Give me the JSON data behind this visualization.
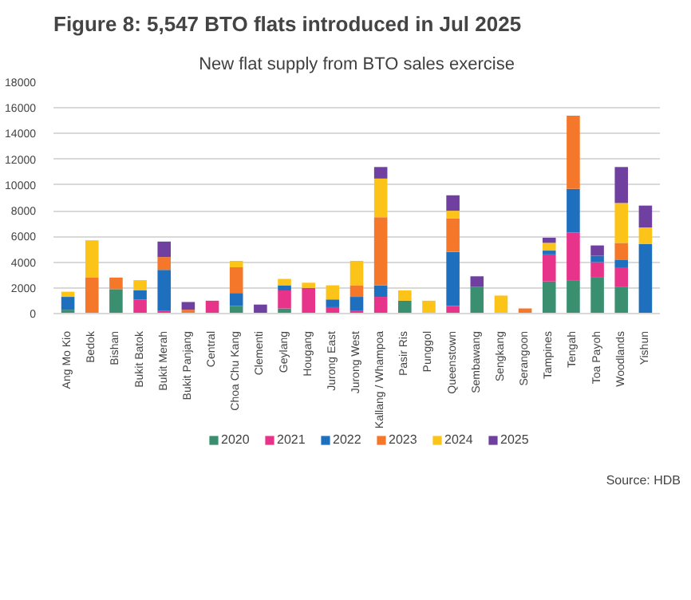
{
  "chart_data": {
    "type": "bar",
    "stacked": true,
    "title": "New flat supply from BTO sales exercise",
    "subtitle": "Figure 8: 5,547 BTO flats introduced in Jul 2025",
    "annotations": [
      "Source: HDB"
    ],
    "categories": [
      "Ang Mo Kio",
      "Bedok",
      "Bishan",
      "Bukit Batok",
      "Bukit Merah",
      "Bukit Panjang",
      "Central",
      "Choa Chu Kang",
      "Clementi",
      "Geylang",
      "Hougang",
      "Jurong East",
      "Jurong West",
      "Kallang / Whampoa",
      "Pasir Ris",
      "Punggol",
      "Queenstown",
      "Sembawang",
      "Sengkang",
      "Serangoon",
      "Tampines",
      "Tengah",
      "Toa Payoh",
      "Woodlands",
      "Yishun"
    ],
    "series": [
      {
        "name": "2020",
        "color": "#3a8f70",
        "values": [
          300,
          null,
          1900,
          null,
          null,
          null,
          null,
          600,
          null,
          400,
          null,
          null,
          null,
          null,
          1000,
          null,
          null,
          2100,
          null,
          null,
          2500,
          2600,
          2800,
          2100,
          null
        ]
      },
      {
        "name": "2021",
        "color": "#e8338a",
        "values": [
          null,
          null,
          null,
          1100,
          200,
          null,
          1000,
          null,
          null,
          1400,
          2000,
          500,
          200,
          1300,
          null,
          null,
          600,
          null,
          null,
          null,
          2100,
          3700,
          1200,
          1500,
          null
        ]
      },
      {
        "name": "2022",
        "color": "#1f6fbf",
        "values": [
          1000,
          null,
          null,
          700,
          3200,
          null,
          null,
          1000,
          null,
          400,
          null,
          600,
          1100,
          900,
          null,
          null,
          4200,
          null,
          null,
          null,
          300,
          3400,
          500,
          600,
          5400
        ]
      },
      {
        "name": "2023",
        "color": "#f5782a",
        "values": [
          null,
          2800,
          900,
          null,
          1000,
          300,
          null,
          2000,
          null,
          null,
          null,
          null,
          900,
          5300,
          null,
          null,
          2600,
          null,
          null,
          400,
          null,
          5700,
          null,
          1300,
          null
        ]
      },
      {
        "name": "2024",
        "color": "#fcc419",
        "values": [
          400,
          2900,
          null,
          800,
          null,
          null,
          null,
          500,
          null,
          500,
          400,
          1100,
          1900,
          3000,
          800,
          1000,
          600,
          null,
          1400,
          null,
          600,
          null,
          null,
          3100,
          1300
        ]
      },
      {
        "name": "2025",
        "color": "#7040a0",
        "values": [
          null,
          null,
          null,
          null,
          1200,
          600,
          null,
          null,
          700,
          null,
          null,
          null,
          null,
          900,
          null,
          null,
          1200,
          800,
          null,
          null,
          400,
          null,
          800,
          2800,
          1700
        ]
      }
    ],
    "ylim": [
      0,
      18000
    ],
    "yticks": [
      0,
      2000,
      4000,
      6000,
      8000,
      10000,
      12000,
      14000,
      16000,
      18000
    ],
    "grid": "y",
    "legend": "bottom"
  }
}
